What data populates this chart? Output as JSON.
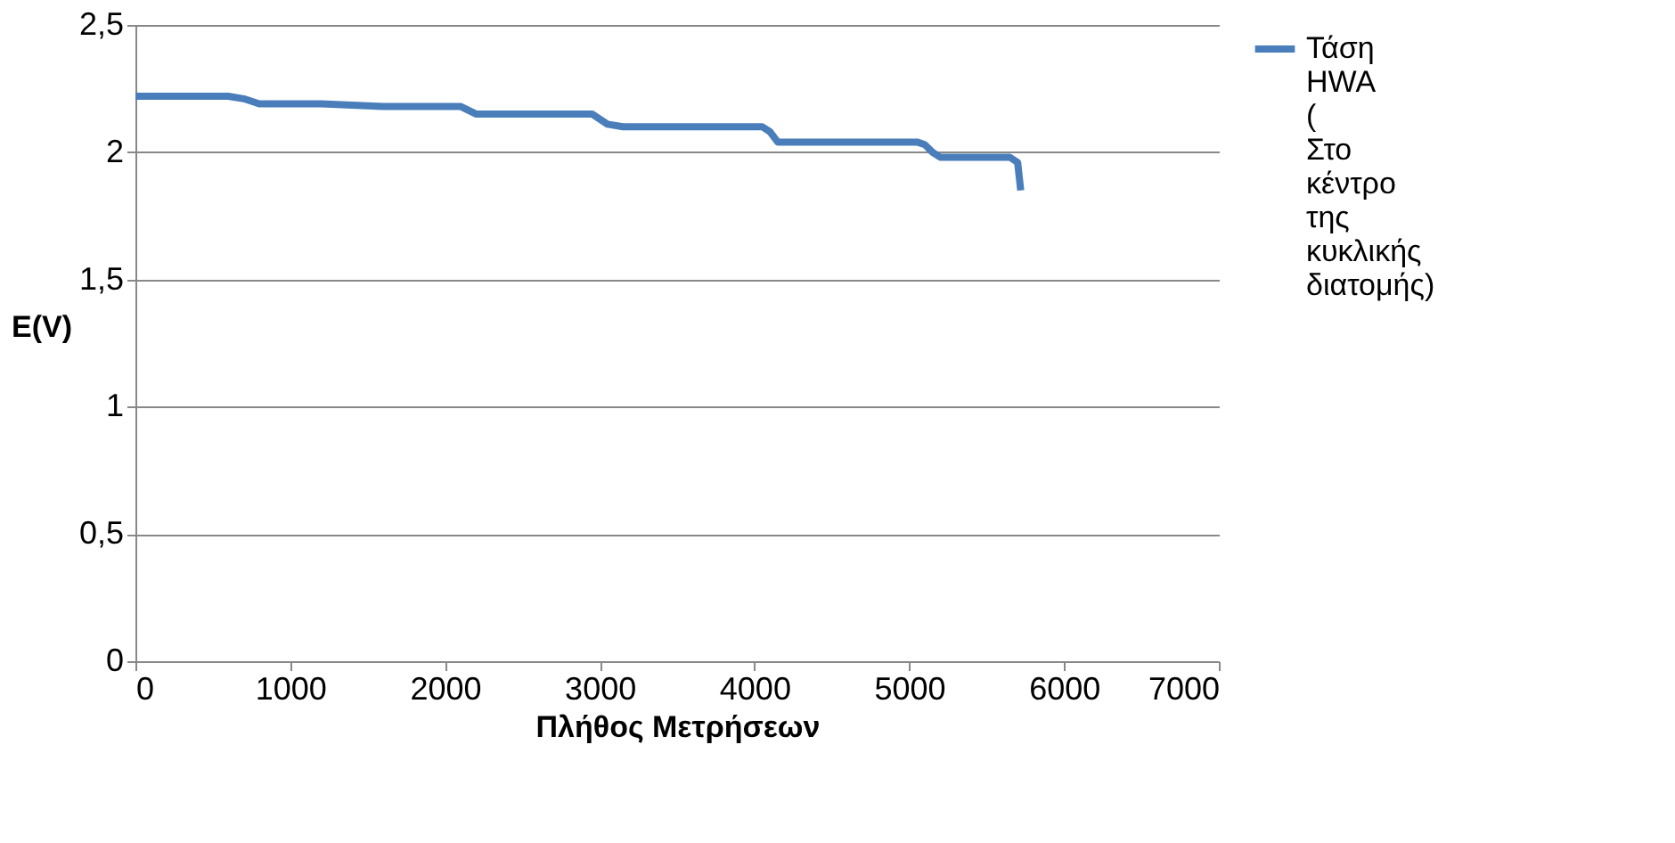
{
  "chart_data": {
    "type": "line",
    "xlabel": "Πλήθος Μετρήσεων",
    "ylabel": "E(V)",
    "x": [
      0,
      300,
      600,
      700,
      800,
      1200,
      1600,
      2000,
      2100,
      2200,
      2500,
      2800,
      2950,
      3050,
      3150,
      3500,
      3800,
      4050,
      4100,
      4150,
      4200,
      4500,
      4800,
      5050,
      5100,
      5150,
      5200,
      5400,
      5650,
      5700,
      5720
    ],
    "series": [
      {
        "name": "Τάση HWA ( Στο κέντρο της κυκλικής διατομής)",
        "color": "#4a7ebb",
        "values": [
          2.22,
          2.22,
          2.22,
          2.21,
          2.19,
          2.19,
          2.18,
          2.18,
          2.18,
          2.15,
          2.15,
          2.15,
          2.15,
          2.11,
          2.1,
          2.1,
          2.1,
          2.1,
          2.08,
          2.04,
          2.04,
          2.04,
          2.04,
          2.04,
          2.03,
          2.0,
          1.98,
          1.98,
          1.98,
          1.96,
          1.85
        ]
      }
    ],
    "xlim": [
      0,
      7000
    ],
    "xticks": [
      0,
      1000,
      2000,
      3000,
      4000,
      5000,
      6000,
      7000
    ],
    "ylim": [
      0,
      2.5
    ],
    "yticks": [
      {
        "value": 0,
        "label": "0"
      },
      {
        "value": 0.5,
        "label": "0,5"
      },
      {
        "value": 1,
        "label": "1"
      },
      {
        "value": 1.5,
        "label": "1,5"
      },
      {
        "value": 2,
        "label": "2"
      },
      {
        "value": 2.5,
        "label": "2,5"
      }
    ],
    "grid": "y",
    "legend": "right",
    "marker": "none",
    "line_style": "solid"
  }
}
